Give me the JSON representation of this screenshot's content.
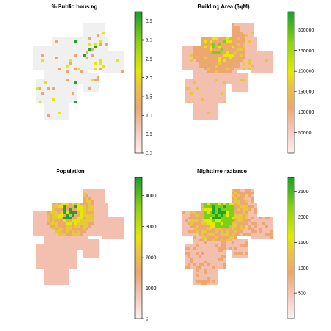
{
  "chart_data": [
    {
      "type": "heatmap",
      "title": "% Public housing",
      "colorbar": {
        "min": 0,
        "max": 3.75,
        "ticks": [
          0.0,
          0.5,
          1.0,
          1.5,
          2.0,
          2.5,
          3.0,
          3.5
        ],
        "tick_labels": [
          "0.0",
          "0.5",
          "1.0",
          "1.5",
          "2.0",
          "2.5",
          "3.0",
          "3.5"
        ]
      },
      "palette": [
        "#f0f0f0",
        "#f3c0b0",
        "#eda770",
        "#e6c83a",
        "#e4e900",
        "#7ad11a",
        "#1fa52a"
      ],
      "grid": false,
      "legend": "right"
    },
    {
      "type": "heatmap",
      "title": "Building Area ($qM)",
      "colorbar": {
        "min": 0,
        "max": 345000,
        "ticks": [
          50000,
          100000,
          150000,
          200000,
          250000,
          300000
        ],
        "tick_labels": [
          "50000",
          "100000",
          "150000",
          "200000",
          "250000",
          "300000"
        ]
      },
      "palette": [
        "#f0f0f0",
        "#f3c0b0",
        "#eda770",
        "#e6c83a",
        "#e4e900",
        "#7ad11a",
        "#1fa52a"
      ],
      "grid": false,
      "legend": "right"
    },
    {
      "type": "heatmap",
      "title": "Population",
      "colorbar": {
        "min": 0,
        "max": 4600,
        "ticks": [
          0,
          1000,
          2000,
          3000,
          4000
        ],
        "tick_labels": [
          "0",
          "1000",
          "2000",
          "3000",
          "4000"
        ]
      },
      "palette": [
        "#f0f0f0",
        "#f3c0b0",
        "#eda770",
        "#e6c83a",
        "#e4e900",
        "#7ad11a",
        "#1fa52a"
      ],
      "grid": false,
      "legend": "right"
    },
    {
      "type": "heatmap",
      "title": "Nighttime radiance",
      "colorbar": {
        "min": 0,
        "max": 2780,
        "ticks": [
          500,
          1000,
          1500,
          2000,
          2500
        ],
        "tick_labels": [
          "500",
          "1000",
          "1500",
          "2000",
          "2500"
        ]
      },
      "palette": [
        "#f0f0f0",
        "#f3c0b0",
        "#eda770",
        "#e6c83a",
        "#e4e900",
        "#7ad11a",
        "#1fa52a"
      ],
      "grid": false,
      "legend": "right"
    }
  ]
}
